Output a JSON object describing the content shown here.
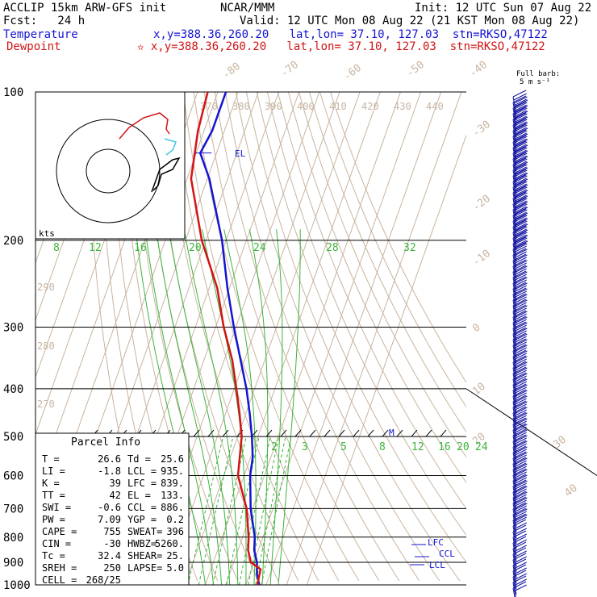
{
  "header": {
    "model": "ACCLIP 15km ARW-GFS init",
    "org": "NCAR/MMM",
    "init": "Init: 12 UTC Sun 07 Aug 22",
    "fcst": "Fcst:   24 h",
    "valid": "Valid: 12 UTC Mon 08 Aug 22 (21 KST Mon 08 Aug 22)",
    "temp_label": "Temperature",
    "temp_loc": "x,y=388.36,260.20   lat,lon= 37.10, 127.03  stn=RKSO,47122",
    "dew_label": "Dewpoint",
    "dew_loc": "✫ x,y=388.36,260.20   lat,lon= 37.10, 127.03  stn=RKSO,47122"
  },
  "colors": {
    "temperature": "#1414d2",
    "dewpoint": "#d21414",
    "isotherm": "#c8b4a0",
    "adiabat": "#c8b4a0",
    "moist_adiabat": "#3cb43c",
    "mixing_ratio": "#3cb43c",
    "barb": "#1414a0"
  },
  "barb_legend": {
    "title": "Full barb:",
    "unit": "5 m s⁻¹"
  },
  "hodograph": {
    "unit_label": "kts"
  },
  "parcel_info": {
    "title": "Parcel Info",
    "rows": [
      [
        "T  =",
        "26.6",
        "Td =",
        "25.6"
      ],
      [
        "LI =",
        "-1.8",
        "LCL =",
        "935."
      ],
      [
        "K  =",
        "39",
        "LFC =",
        "839."
      ],
      [
        "TT =",
        "42",
        "EL =",
        "133."
      ],
      [
        "SWI =",
        "-0.6",
        "CCL =",
        "886."
      ],
      [
        "PW =",
        "7.09",
        "YGP =",
        "0.2"
      ],
      [
        "CAPE =",
        "755",
        "SWEAT=",
        "396"
      ],
      [
        "CIN =",
        "-30",
        "HWBZ=",
        "5260."
      ],
      [
        "Tc =",
        "32.4",
        "SHEAR=",
        "25."
      ],
      [
        "SREH =",
        "250",
        "LAPSE=",
        "5.0"
      ],
      [
        "CELL =",
        "268/25",
        "",
        ""
      ]
    ]
  },
  "level_labels": {
    "el": "EL",
    "m": "M",
    "lfc": "LFC",
    "ccl": "CCL",
    "lcl": "LCL"
  },
  "chart_data": {
    "type": "line",
    "title": "",
    "xlabel": "",
    "ylabel": "",
    "y_scale": "log",
    "ylim": [
      1000,
      100
    ],
    "pressure_ticks": [
      100,
      200,
      300,
      400,
      500,
      600,
      700,
      800,
      900,
      1000
    ],
    "isotherm_labels": [
      "-80",
      "-70",
      "-60",
      "-50",
      "-40",
      "-30",
      "-20",
      "-10",
      "0",
      "10",
      "20",
      "30",
      "40"
    ],
    "theta_labels_top": [
      "370",
      "380",
      "390",
      "400",
      "410",
      "420",
      "430",
      "440"
    ],
    "theta_labels_side": [
      "290",
      "280",
      "270"
    ],
    "moist_labels": [
      "8",
      "12",
      "16",
      "20",
      "24",
      "28",
      "32"
    ],
    "mixing_labels": [
      "2",
      "3",
      "5",
      "8",
      "12",
      "16",
      "20",
      "24"
    ],
    "series": [
      {
        "name": "Temperature",
        "color": "#1414d2",
        "points": [
          {
            "p": 100,
            "t": -76
          },
          {
            "p": 120,
            "t": -76
          },
          {
            "p": 133,
            "t": -78
          },
          {
            "p": 150,
            "t": -69
          },
          {
            "p": 200,
            "t": -52
          },
          {
            "p": 250,
            "t": -41
          },
          {
            "p": 300,
            "t": -31
          },
          {
            "p": 400,
            "t": -14
          },
          {
            "p": 450,
            "t": -8
          },
          {
            "p": 500,
            "t": -3
          },
          {
            "p": 550,
            "t": 1
          },
          {
            "p": 600,
            "t": 3
          },
          {
            "p": 700,
            "t": 9
          },
          {
            "p": 800,
            "t": 16
          },
          {
            "p": 850,
            "t": 18
          },
          {
            "p": 900,
            "t": 21.5
          },
          {
            "p": 950,
            "t": 23.5
          },
          {
            "p": 1000,
            "t": 26.6
          }
        ]
      },
      {
        "name": "Dewpoint",
        "color": "#d21414",
        "points": [
          {
            "p": 100,
            "t": -85
          },
          {
            "p": 120,
            "t": -83
          },
          {
            "p": 150,
            "t": -78
          },
          {
            "p": 200,
            "t": -62
          },
          {
            "p": 250,
            "t": -46
          },
          {
            "p": 300,
            "t": -36
          },
          {
            "p": 350,
            "t": -26
          },
          {
            "p": 400,
            "t": -19
          },
          {
            "p": 450,
            "t": -13
          },
          {
            "p": 500,
            "t": -8
          },
          {
            "p": 600,
            "t": -3
          },
          {
            "p": 700,
            "t": 7
          },
          {
            "p": 800,
            "t": 13
          },
          {
            "p": 850,
            "t": 15
          },
          {
            "p": 900,
            "t": 18.5
          },
          {
            "p": 930,
            "t": 24.5
          },
          {
            "p": 1000,
            "t": 25.6
          }
        ]
      }
    ]
  }
}
